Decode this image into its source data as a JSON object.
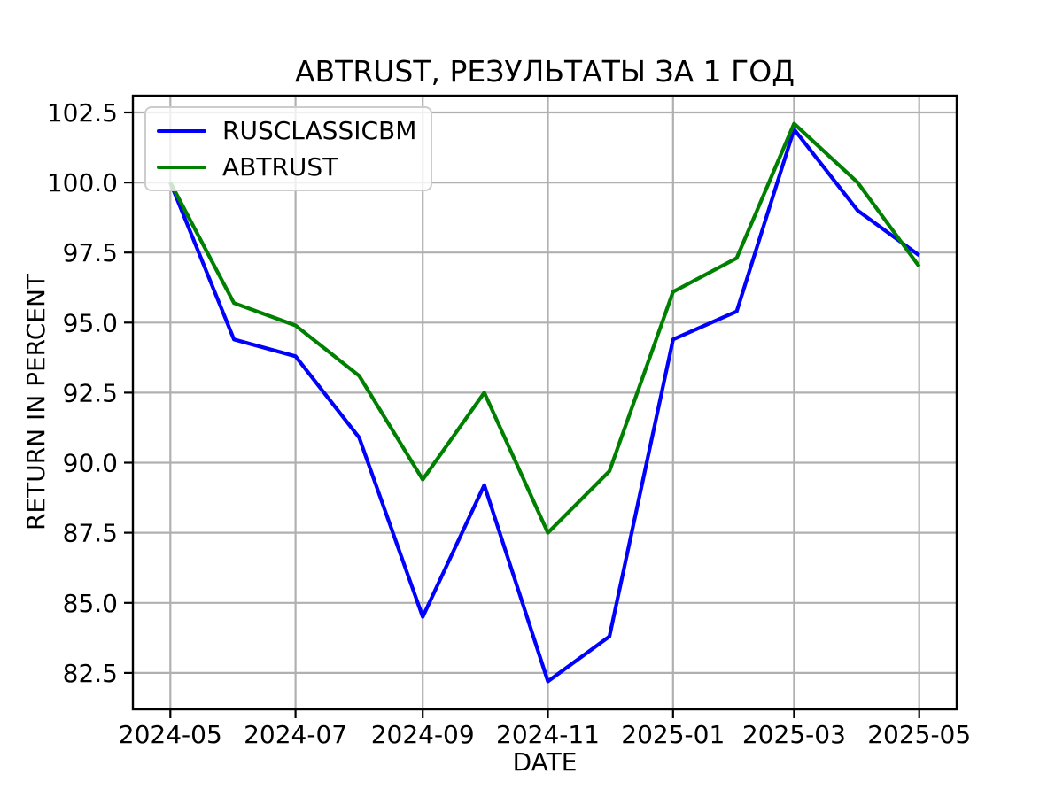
{
  "figure": {
    "title": "ABTRUST, РЕЗУЛЬТАТЫ ЗА 1 ГОД",
    "xlabel": "DATE",
    "ylabel": "RETURN IN PERCENT",
    "background_color": "#ffffff",
    "text_color": "#000000"
  },
  "legend": {
    "entries": [
      {
        "label": "RUSCLASSICBM",
        "color": "#0000ff"
      },
      {
        "label": "ABTRUST",
        "color": "#008000"
      }
    ]
  },
  "chart_data": {
    "type": "line",
    "title": "ABTRUST, РЕЗУЛЬТАТЫ ЗА 1 ГОД",
    "xlabel": "DATE",
    "ylabel": "RETURN IN PERCENT",
    "x": [
      "2024-05-01",
      "2024-06-01",
      "2024-07-01",
      "2024-08-01",
      "2024-09-01",
      "2024-10-01",
      "2024-11-01",
      "2024-12-01",
      "2025-01-01",
      "2025-02-01",
      "2025-03-01",
      "2025-04-01",
      "2025-05-01"
    ],
    "series": [
      {
        "name": "RUSCLASSICBM",
        "color": "#0000ff",
        "values": [
          100.0,
          94.4,
          93.8,
          90.9,
          84.5,
          89.2,
          82.2,
          83.8,
          94.4,
          95.4,
          101.9,
          99.0,
          97.4
        ]
      },
      {
        "name": "ABTRUST",
        "color": "#008000",
        "values": [
          100.0,
          95.7,
          94.9,
          93.1,
          89.4,
          92.5,
          87.5,
          89.7,
          96.1,
          97.3,
          102.1,
          100.0,
          97.0
        ]
      }
    ],
    "x_ticks": [
      "2024-05-01",
      "2024-07-01",
      "2024-09-01",
      "2024-11-01",
      "2025-01-01",
      "2025-03-01",
      "2025-05-01"
    ],
    "x_tick_labels": [
      "2024-05",
      "2024-07",
      "2024-09",
      "2024-11",
      "2025-01",
      "2025-03",
      "2025-05"
    ],
    "y_ticks": [
      82.5,
      85.0,
      87.5,
      90.0,
      92.5,
      95.0,
      97.5,
      100.0,
      102.5
    ],
    "y_tick_labels": [
      "82.5",
      "85.0",
      "87.5",
      "90.0",
      "92.5",
      "95.0",
      "97.5",
      "100.0",
      "102.5"
    ],
    "ylim": [
      81.2,
      103.1
    ],
    "x_margin_frac": 0.05,
    "grid": true,
    "grid_color": "#b0b0b0",
    "axes_color": "#000000",
    "line_width": 4.2,
    "legend_position": "upper left"
  }
}
